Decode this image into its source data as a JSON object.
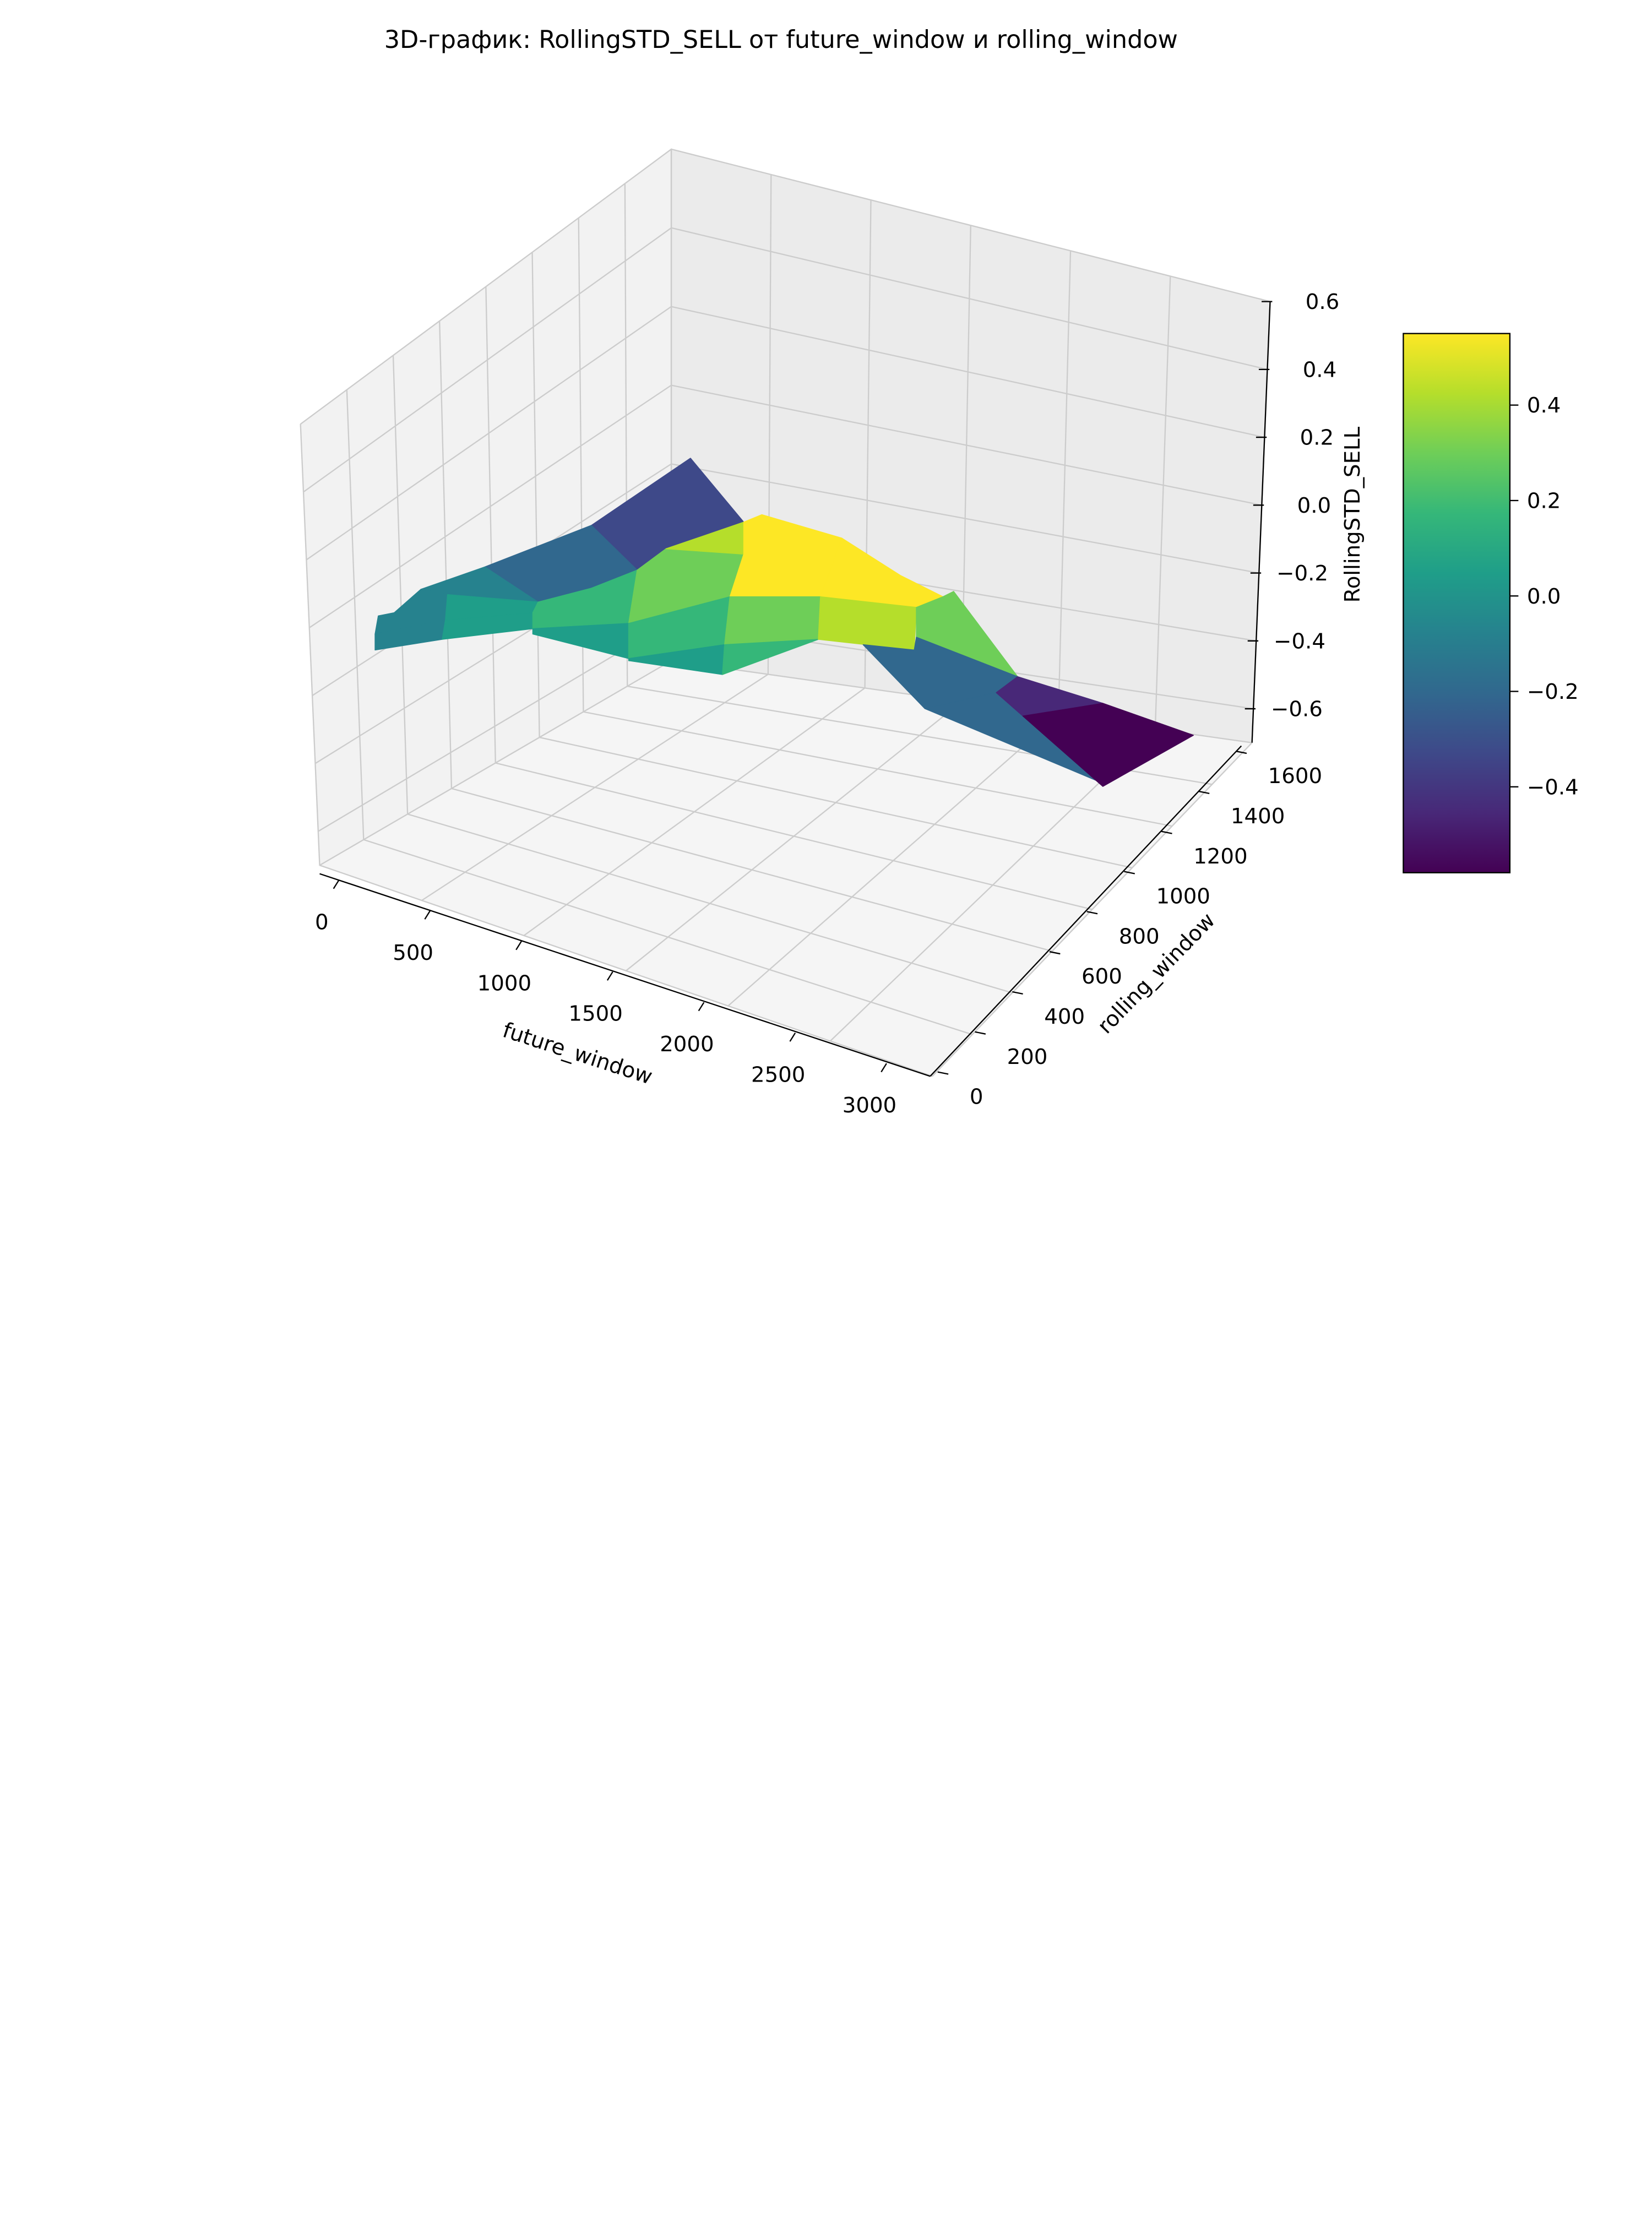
{
  "chart_data": {
    "type": "surface3d",
    "title": "3D-график: RollingSTD_SELL от future_window и rolling_window",
    "xlabel": "future_window",
    "ylabel": "rolling_window",
    "zlabel": "RollingSTD_SELL",
    "xlim": [
      0,
      3000
    ],
    "ylim": [
      0,
      1600
    ],
    "zlim": [
      -0.7,
      0.6
    ],
    "x_ticks": [
      "0",
      "500",
      "1000",
      "1500",
      "2000",
      "2500",
      "3000"
    ],
    "y_ticks": [
      "0",
      "200",
      "400",
      "600",
      "800",
      "1000",
      "1200",
      "1400",
      "1600"
    ],
    "z_ticks": [
      "−0.6",
      "−0.4",
      "−0.2",
      "0.0",
      "0.2",
      "0.4",
      "0.6"
    ],
    "colorbar": {
      "colormap": "viridis",
      "range": [
        -0.58,
        0.55
      ],
      "ticks": [
        "−0.4",
        "−0.2",
        "0.0",
        "0.2",
        "0.4"
      ],
      "tick_values": [
        -0.4,
        -0.2,
        0.0,
        0.2,
        0.4
      ]
    },
    "grid": true,
    "colors": {
      "viridis": [
        "#440154",
        "#482878",
        "#3e4989",
        "#31688e",
        "#26828e",
        "#1f9e89",
        "#35b779",
        "#6ece58",
        "#b5de2b",
        "#fde725"
      ],
      "pane": "#f2f2f2",
      "grid_line": "#cccccc",
      "axis_line": "#000000"
    }
  }
}
